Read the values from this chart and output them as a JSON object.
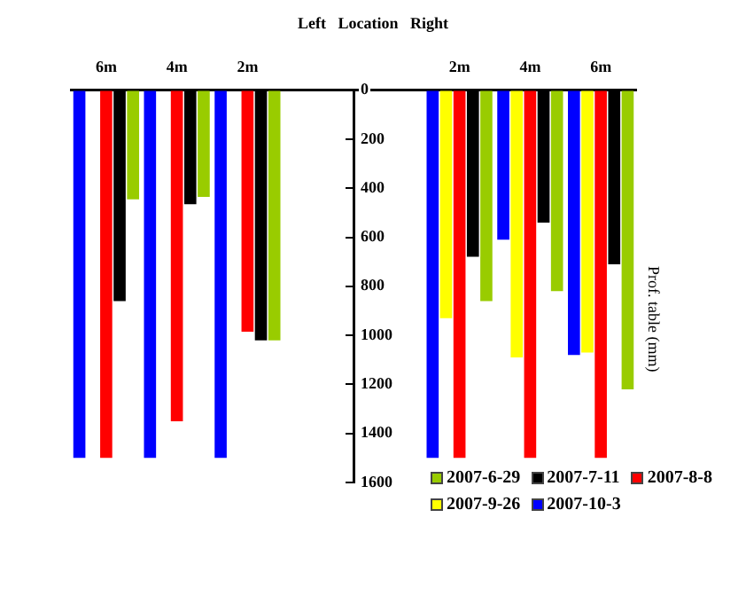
{
  "chart_data": {
    "type": "bar",
    "title": "Left   Location   Right",
    "ylabel": "Prof. table (mm)",
    "categories": [
      "6m",
      "4m",
      "2m",
      null,
      null,
      "2m",
      "4m",
      "6m"
    ],
    "series": [
      {
        "name": "2007-10-3",
        "color": "#0000ff",
        "values": [
          1500,
          1500,
          1500,
          null,
          null,
          1500,
          610,
          1080
        ]
      },
      {
        "name": "2007-9-26",
        "color": "#ffff00",
        "values": [
          null,
          null,
          null,
          null,
          null,
          930,
          1090,
          1070
        ]
      },
      {
        "name": "2007-8-8",
        "color": "#ff0000",
        "values": [
          1500,
          1350,
          985,
          null,
          null,
          1500,
          1500,
          1500
        ]
      },
      {
        "name": "2007-7-11",
        "color": "#000000",
        "values": [
          860,
          465,
          1020,
          null,
          null,
          680,
          540,
          710
        ]
      },
      {
        "name": "2007-6-29",
        "color": "#99cc00",
        "values": [
          445,
          435,
          1020,
          null,
          null,
          860,
          820,
          1220
        ]
      }
    ],
    "ylim": [
      1600,
      0
    ],
    "yticks": [
      0,
      200,
      400,
      600,
      800,
      1000,
      1200,
      1400,
      1600
    ],
    "grid": false,
    "legend": "bottom right"
  }
}
